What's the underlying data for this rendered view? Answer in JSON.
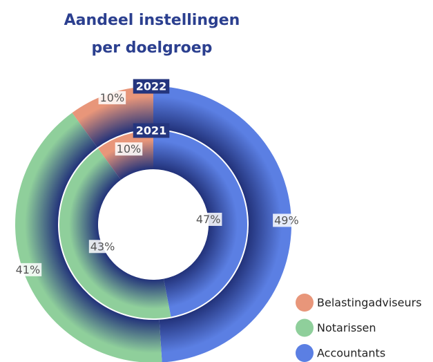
{
  "chart_data": {
    "type": "donut",
    "title": "Aandeel instellingen per doelgroep",
    "categories": [
      "Accountants",
      "Notarissen",
      "Belastingadviseurs"
    ],
    "colors": [
      "#5b7fe3",
      "#8fcf9b",
      "#e8967a"
    ],
    "series": [
      {
        "name": "2022",
        "values": [
          49,
          41,
          10
        ],
        "value_labels": [
          "49%",
          "41%",
          "10%"
        ]
      },
      {
        "name": "2021",
        "values": [
          47,
          43,
          10
        ],
        "value_labels": [
          "47%",
          "43%",
          "10%"
        ]
      }
    ],
    "legend": "bottom-right"
  }
}
